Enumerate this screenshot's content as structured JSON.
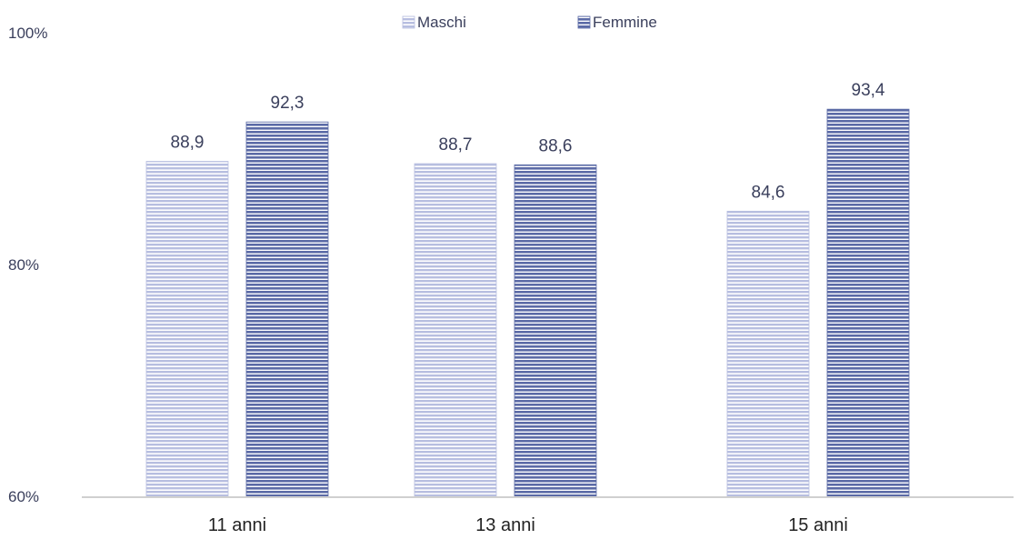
{
  "chart_data": {
    "type": "bar",
    "categories": [
      "11 anni",
      "13 anni",
      "15 anni"
    ],
    "series": [
      {
        "name": "Maschi",
        "values": [
          88.9,
          88.7,
          84.6
        ],
        "color": "#b7bee0",
        "label_text": [
          "88,9",
          "88,7",
          "84,6"
        ]
      },
      {
        "name": "Femmine",
        "values": [
          92.3,
          88.6,
          93.4
        ],
        "color": "#5b6aa6",
        "label_text": [
          "92,3",
          "88,6",
          "93,4"
        ]
      }
    ],
    "y_ticks": [
      {
        "value": 60,
        "label": "60%"
      },
      {
        "value": 80,
        "label": "80%"
      },
      {
        "value": 100,
        "label": "100%"
      }
    ],
    "ylim": [
      60,
      100
    ],
    "legend_position": "top-center",
    "grid": false,
    "axis_color": "#d0d0d0",
    "text_color": "#3a3f5c"
  }
}
